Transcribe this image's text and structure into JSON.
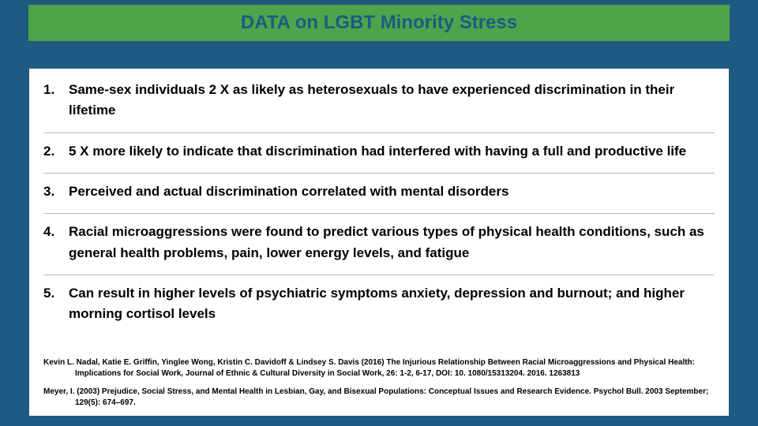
{
  "colors": {
    "slide_bg": "#1f5a82",
    "title_bg": "#4da44b",
    "title_text": "#1f5a82",
    "body_bg": "#ffffff",
    "body_text": "#000000",
    "divider": "#b8b8b8"
  },
  "typography": {
    "title_fontsize": 24,
    "item_fontsize": 17,
    "ref_fontsize": 10,
    "font_family": "Arial"
  },
  "title": "DATA on LGBT Minority Stress",
  "items": [
    "Same-sex individuals  2 X as likely as heterosexuals to have experienced discrimination in their lifetime",
    "5 X more likely to indicate that discrimination had interfered with having a full and productive life",
    "Perceived and actual discrimination correlated with mental disorders",
    "Racial microaggressions were found to predict various types of physical health conditions, such as general health problems, pain, lower energy levels, and fatigue",
    "Can result in higher levels of psychiatric symptoms anxiety, depression and burnout; and higher morning cortisol levels"
  ],
  "references": [
    "Kevin L. Nadal, Katie E. Griffin, Yinglee Wong, Kristin C. Davidoff & Lindsey S. Davis (2016) The Injurious Relationship Between Racial Microaggressions and Physical Health: Implications for Social Work, Journal of Ethnic & Cultural Diversity in Social Work, 26: 1-2, 6-17, DOI: 10. 1080/15313204. 2016. 1263813",
    "Meyer, I. (2003) Prejudice, Social Stress, and Mental Health in Lesbian, Gay, and Bisexual Populations: Conceptual Issues and Research Evidence. Psychol Bull. 2003 September; 129(5): 674–697."
  ]
}
